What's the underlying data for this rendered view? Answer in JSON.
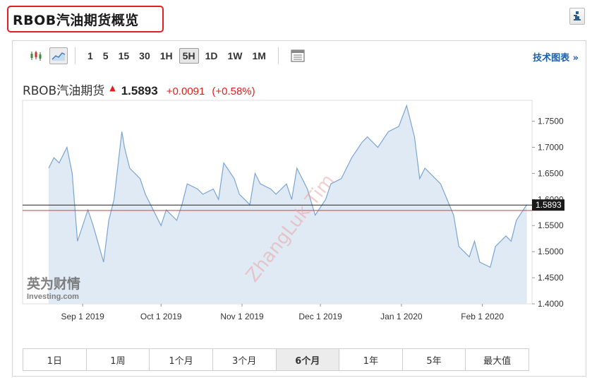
{
  "page_title": "RBOB汽油期货概览",
  "toolbar": {
    "periods": [
      "1",
      "5",
      "15",
      "30",
      "1H",
      "5H",
      "1D",
      "1W",
      "1M"
    ],
    "active_period": "5H",
    "tech_chart_link": "技术图表 »"
  },
  "quote": {
    "name": "RBOB汽油期货",
    "price": "1.5893",
    "change": "+0.0091",
    "change_pct": "(+0.58%)",
    "up_color": "#e02020"
  },
  "range_buttons": [
    "1日",
    "1周",
    "1个月",
    "3个月",
    "6个月",
    "1年",
    "5年",
    "最大值"
  ],
  "active_range": "6个月",
  "watermark": "ZhangLuk Tim",
  "logo": {
    "cn": "英为财情",
    "en": "Investing.com"
  },
  "chart_data": {
    "type": "area",
    "x_ticks": [
      "Sep 1 2019",
      "Oct 1 2019",
      "Nov 1 2019",
      "Dec 1 2019",
      "Jan 1 2020",
      "Feb 1 2020"
    ],
    "y_ticks": [
      "1.7500",
      "1.7000",
      "1.6500",
      "1.6000",
      "1.5500",
      "1.5000",
      "1.4500",
      "1.4000"
    ],
    "ylim": [
      1.4,
      1.79
    ],
    "last_price": 1.5893,
    "last_price_label": "1.5893",
    "reference_line": 1.579,
    "x": [
      "2019-08-19",
      "2019-08-21",
      "2019-08-23",
      "2019-08-26",
      "2019-08-28",
      "2019-08-30",
      "2019-09-03",
      "2019-09-05",
      "2019-09-09",
      "2019-09-11",
      "2019-09-13",
      "2019-09-16",
      "2019-09-17",
      "2019-09-19",
      "2019-09-23",
      "2019-09-25",
      "2019-09-27",
      "2019-10-01",
      "2019-10-03",
      "2019-10-07",
      "2019-10-09",
      "2019-10-11",
      "2019-10-15",
      "2019-10-17",
      "2019-10-21",
      "2019-10-23",
      "2019-10-25",
      "2019-10-29",
      "2019-10-31",
      "2019-11-04",
      "2019-11-06",
      "2019-11-08",
      "2019-11-12",
      "2019-11-14",
      "2019-11-18",
      "2019-11-20",
      "2019-11-22",
      "2019-11-26",
      "2019-11-29",
      "2019-12-03",
      "2019-12-05",
      "2019-12-09",
      "2019-12-11",
      "2019-12-13",
      "2019-12-17",
      "2019-12-19",
      "2019-12-23",
      "2019-12-27",
      "2019-12-31",
      "2020-01-03",
      "2020-01-06",
      "2020-01-08",
      "2020-01-10",
      "2020-01-14",
      "2020-01-16",
      "2020-01-21",
      "2020-01-23",
      "2020-01-27",
      "2020-01-29",
      "2020-01-31",
      "2020-02-04",
      "2020-02-06",
      "2020-02-10",
      "2020-02-12",
      "2020-02-14",
      "2020-02-18"
    ],
    "series": [
      {
        "values": [
          1.66,
          1.68,
          1.67,
          1.7,
          1.65,
          1.52,
          1.58,
          1.55,
          1.48,
          1.56,
          1.6,
          1.73,
          1.7,
          1.66,
          1.64,
          1.61,
          1.59,
          1.55,
          1.58,
          1.56,
          1.59,
          1.63,
          1.62,
          1.61,
          1.62,
          1.6,
          1.67,
          1.64,
          1.61,
          1.59,
          1.65,
          1.63,
          1.62,
          1.61,
          1.63,
          1.6,
          1.66,
          1.62,
          1.57,
          1.6,
          1.63,
          1.64,
          1.66,
          1.68,
          1.71,
          1.72,
          1.7,
          1.73,
          1.74,
          1.78,
          1.72,
          1.64,
          1.66,
          1.64,
          1.63,
          1.57,
          1.51,
          1.49,
          1.52,
          1.48,
          1.47,
          1.51,
          1.53,
          1.52,
          1.56,
          1.59
        ]
      }
    ]
  }
}
